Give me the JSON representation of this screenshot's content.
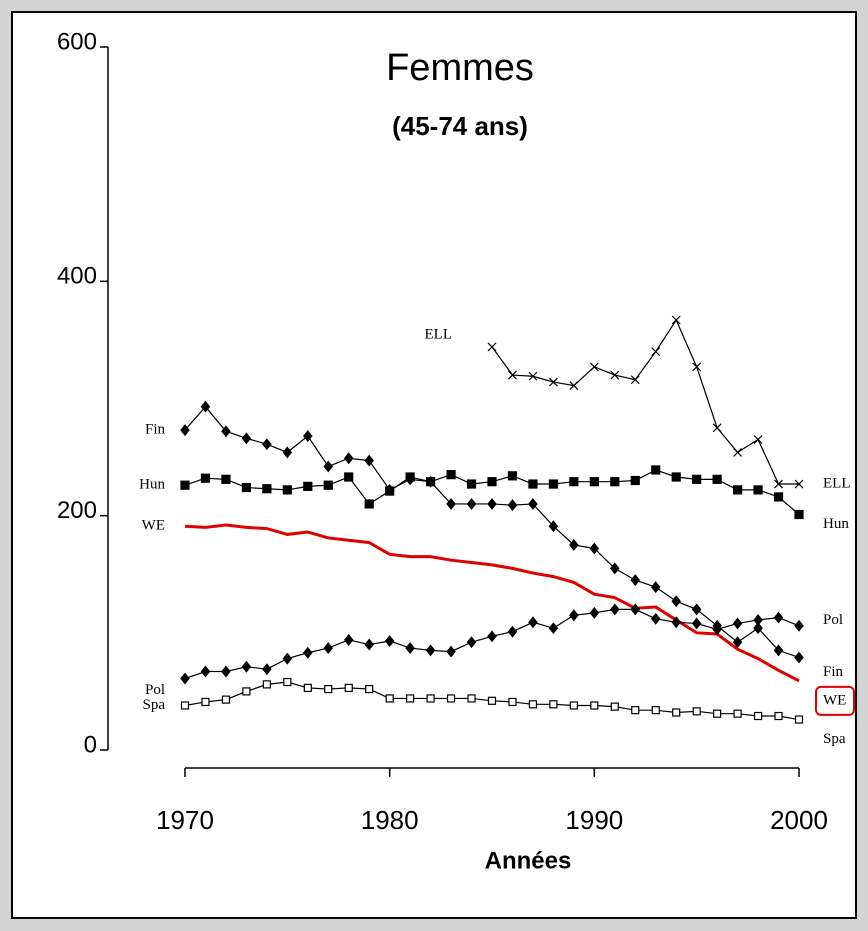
{
  "chart_data": {
    "type": "line",
    "title": "Femmes",
    "subtitle": "(45-74 ans)",
    "x_label": "Années",
    "x": [
      1970,
      1971,
      1972,
      1973,
      1974,
      1975,
      1976,
      1977,
      1978,
      1979,
      1980,
      1981,
      1982,
      1983,
      1984,
      1985,
      1986,
      1987,
      1988,
      1989,
      1990,
      1991,
      1992,
      1993,
      1994,
      1995,
      1996,
      1997,
      1998,
      1999,
      2000
    ],
    "xlim": [
      1970,
      2000
    ],
    "xticks": [
      1970,
      1980,
      1990,
      2000
    ],
    "ylim": [
      0,
      600
    ],
    "yticks": [
      0,
      200,
      400,
      600
    ],
    "series": [
      {
        "name": "Fin",
        "color": "#000000",
        "marker": "diamond",
        "values": [
          273,
          293,
          272,
          266,
          261,
          254,
          268,
          242,
          249,
          247,
          222,
          231,
          229,
          210,
          210,
          210,
          209,
          210,
          191,
          175,
          172,
          155,
          145,
          139,
          127,
          120,
          106,
          92,
          104,
          85,
          79
        ]
      },
      {
        "name": "Hun",
        "color": "#000000",
        "marker": "square",
        "values": [
          226,
          232,
          231,
          224,
          223,
          222,
          225,
          226,
          233,
          210,
          221,
          233,
          229,
          235,
          227,
          229,
          234,
          227,
          227,
          229,
          229,
          229,
          230,
          239,
          233,
          231,
          231,
          222,
          222,
          216,
          201
        ]
      },
      {
        "name": "ELL",
        "color": "#000000",
        "marker": "cross",
        "values": [
          null,
          null,
          null,
          null,
          null,
          null,
          null,
          null,
          null,
          null,
          null,
          null,
          null,
          null,
          null,
          344,
          320,
          319,
          314,
          311,
          327,
          320,
          316,
          340,
          367,
          327,
          275,
          254,
          265,
          227,
          227
        ]
      },
      {
        "name": "WE",
        "color": "#e00000",
        "marker": "none",
        "highlight": true,
        "values": [
          191,
          190,
          192,
          190,
          189,
          184,
          186,
          181,
          179,
          177,
          167,
          165,
          165,
          162,
          160,
          158,
          155,
          151,
          148,
          143,
          133,
          130,
          121,
          122,
          111,
          100,
          99,
          86,
          78,
          68,
          59
        ]
      },
      {
        "name": "Pol",
        "color": "#000000",
        "marker": "diamond",
        "values": [
          61,
          67,
          67,
          71,
          69,
          78,
          83,
          87,
          94,
          90,
          93,
          87,
          85,
          84,
          92,
          97,
          101,
          109,
          104,
          115,
          117,
          120,
          120,
          112,
          109,
          108,
          103,
          108,
          111,
          113,
          106
        ]
      },
      {
        "name": "Spa",
        "color": "#000000",
        "marker": "open-square",
        "values": [
          38,
          41,
          43,
          50,
          56,
          58,
          53,
          52,
          53,
          52,
          44,
          44,
          44,
          44,
          44,
          42,
          41,
          39,
          39,
          38,
          38,
          37,
          34,
          34,
          32,
          33,
          31,
          31,
          29,
          29,
          26
        ]
      }
    ]
  }
}
